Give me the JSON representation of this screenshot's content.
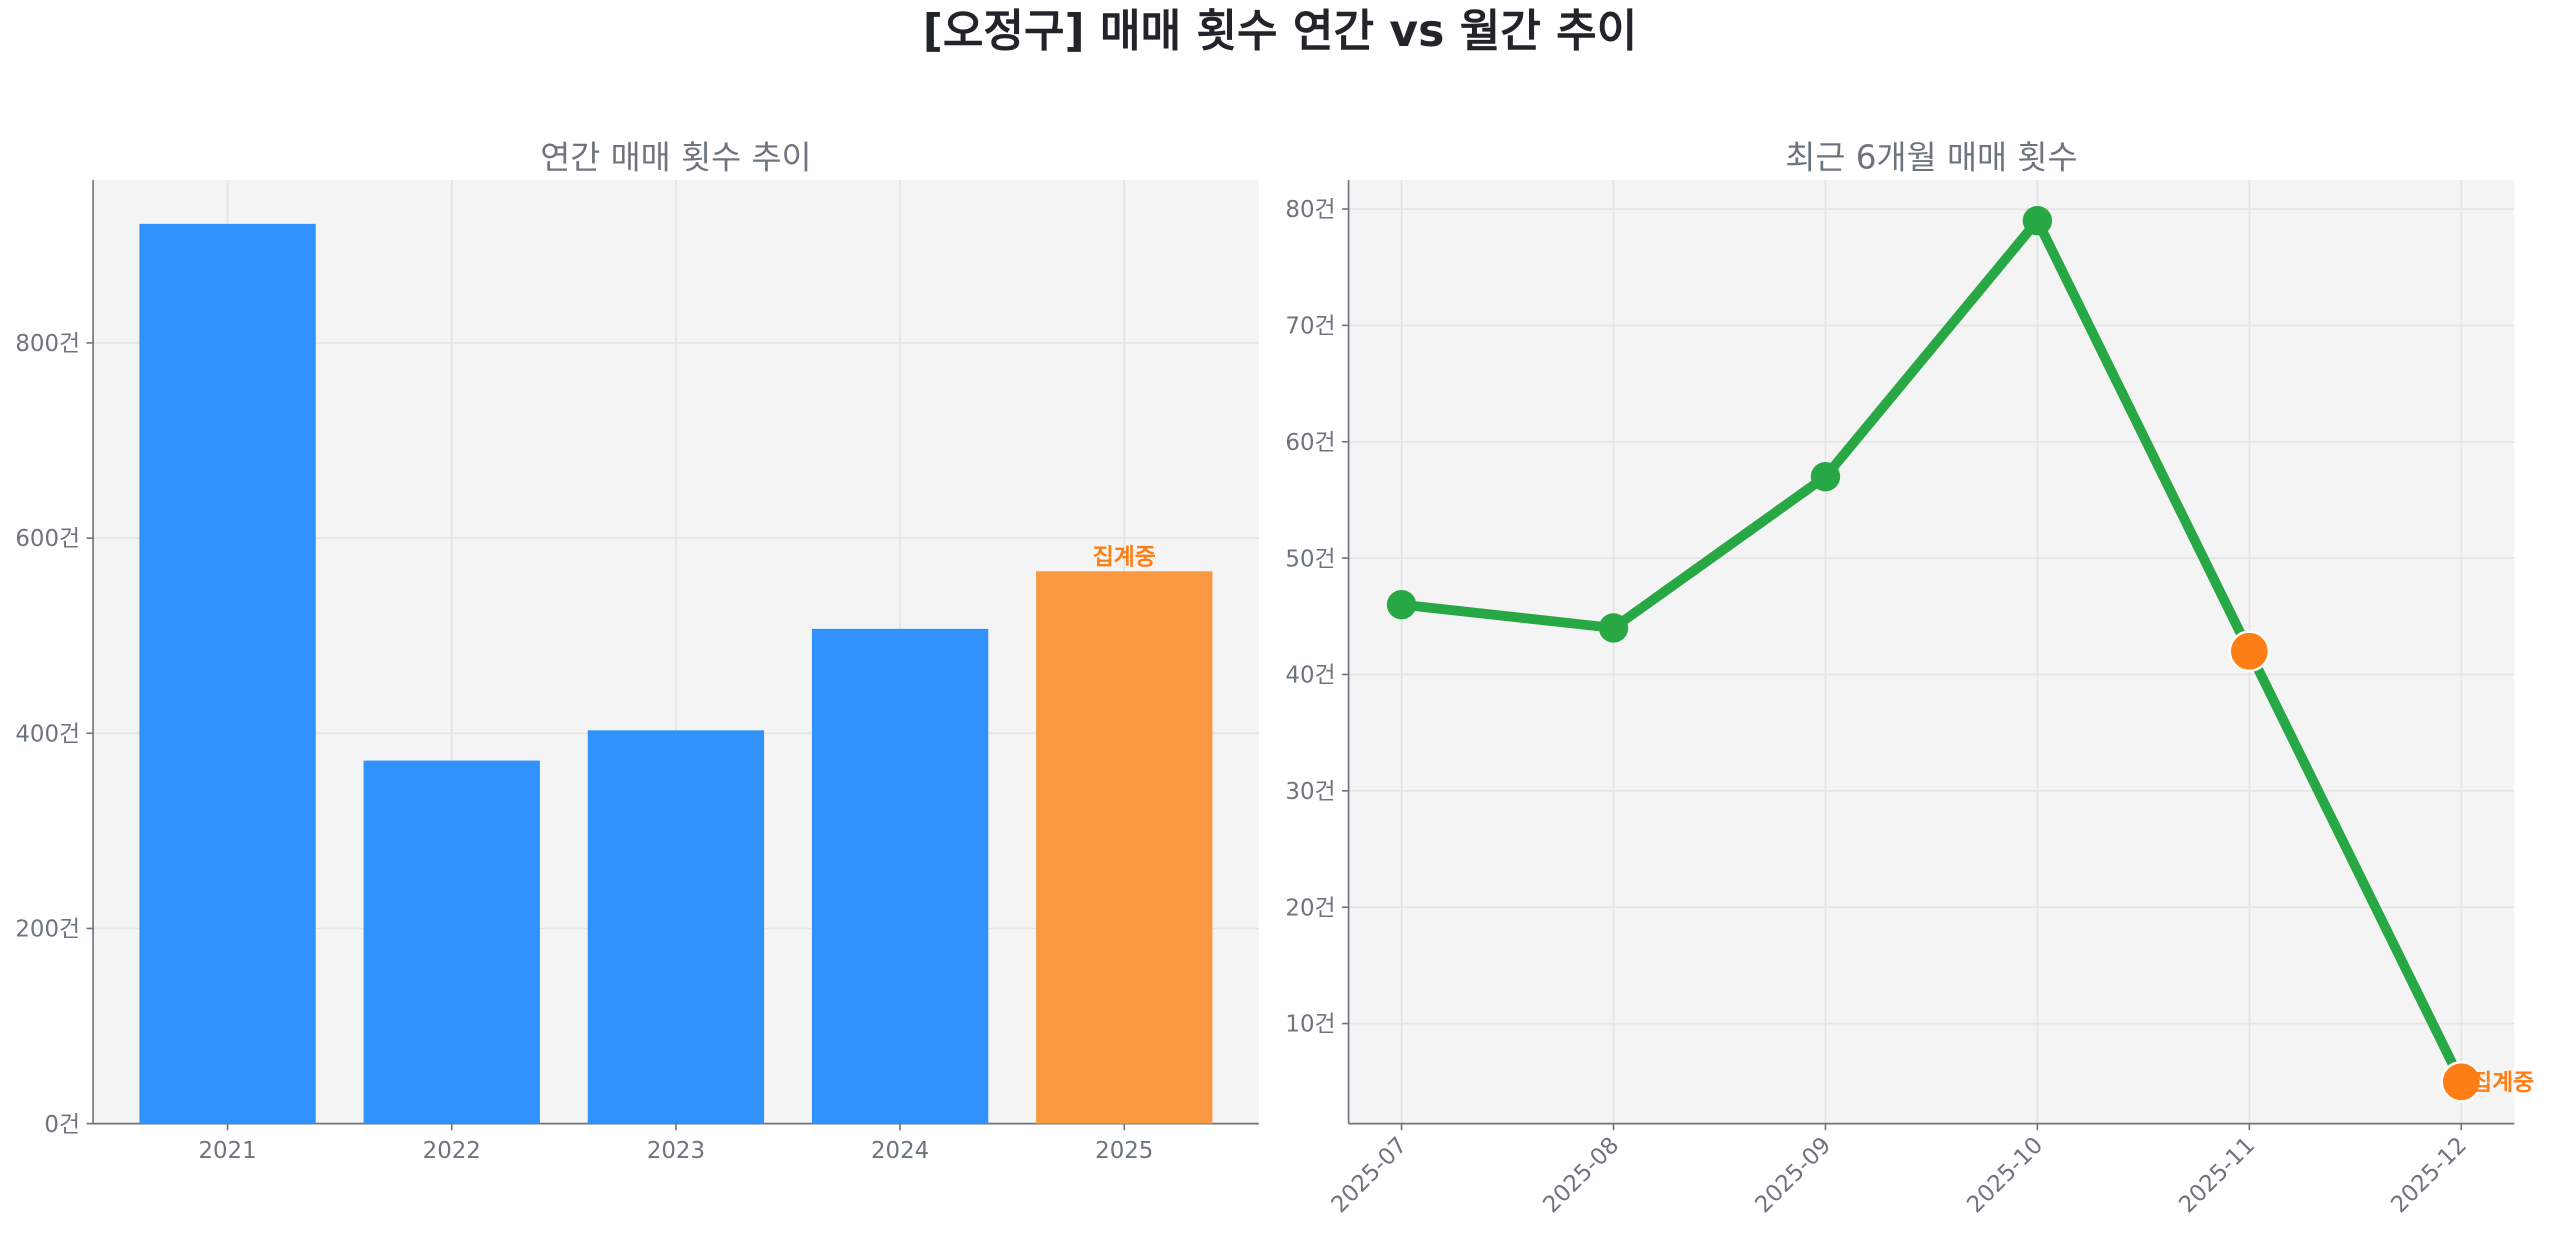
{
  "title": "[오정구] 매매 횟수 연간 vs 월간 추이",
  "colors": {
    "bar": "#3092fb",
    "bar_highlight": "#f99841",
    "line": "#28a745",
    "highlight_marker": "#fd7e14",
    "annotation": "#fd7e14",
    "plot_bg": "#f4f4f4"
  },
  "chart_data": [
    {
      "type": "bar",
      "title": "연간 매매 횟수 추이",
      "categories": [
        "2021",
        "2022",
        "2023",
        "2024",
        "2025"
      ],
      "values": [
        922,
        372,
        403,
        507,
        566
      ],
      "highlight": [
        false,
        false,
        false,
        false,
        true
      ],
      "annotations": [
        {
          "category": "2025",
          "text": "집계중"
        }
      ],
      "yticks": [
        0,
        200,
        400,
        600,
        800
      ],
      "ytick_labels": [
        "0건",
        "200건",
        "400건",
        "600건",
        "800건"
      ],
      "ylim": [
        0,
        967
      ],
      "xlabel": "",
      "ylabel": "",
      "grid": true
    },
    {
      "type": "line",
      "title": "최근 6개월 매매 횟수",
      "categories": [
        "2025-07",
        "2025-08",
        "2025-09",
        "2025-10",
        "2025-11",
        "2025-12"
      ],
      "values": [
        46,
        44,
        57,
        79,
        42,
        5
      ],
      "highlight": [
        false,
        false,
        false,
        false,
        true,
        true
      ],
      "annotations": [
        {
          "category": "2025-12",
          "text": "집계중"
        }
      ],
      "yticks": [
        10,
        20,
        30,
        40,
        50,
        60,
        70,
        80
      ],
      "ytick_labels": [
        "10건",
        "20건",
        "30건",
        "40건",
        "50건",
        "60건",
        "70건",
        "80건"
      ],
      "ylim": [
        1.4,
        82.5
      ],
      "xlabel": "",
      "ylabel": "",
      "grid": true
    }
  ]
}
